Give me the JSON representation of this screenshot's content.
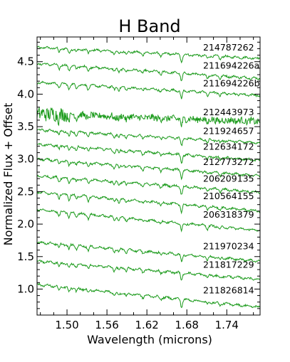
{
  "chart_data": {
    "type": "line",
    "title": "H Band",
    "xlabel": "Wavelength (microns)",
    "ylabel": "Normalized Flux + Offset",
    "xlim": [
      1.455,
      1.79
    ],
    "ylim": [
      0.6,
      4.88
    ],
    "xticks": [
      1.5,
      1.56,
      1.62,
      1.68,
      1.74
    ],
    "xtick_labels": [
      "1.50",
      "1.56",
      "1.62",
      "1.68",
      "1.74"
    ],
    "yticks": [
      1.0,
      1.5,
      2.0,
      2.5,
      3.0,
      3.5,
      4.0,
      4.5
    ],
    "ytick_labels": [
      "1.0",
      "1.5",
      "2.0",
      "2.5",
      "3.0",
      "3.5",
      "4.0",
      "4.5"
    ],
    "line_color": "#1a9a1a",
    "series": [
      {
        "name": "214787262",
        "start": 4.72,
        "end": 4.55
      },
      {
        "name": "211694226a",
        "start": 4.47,
        "end": 4.24
      },
      {
        "name": "211694226b",
        "start": 4.18,
        "end": 3.98
      },
      {
        "name": "212443973",
        "start": 3.7,
        "end": 3.58
      },
      {
        "name": "211924657",
        "start": 3.45,
        "end": 3.25
      },
      {
        "name": "212634172",
        "start": 3.23,
        "end": 2.98
      },
      {
        "name": "212773272",
        "start": 3.0,
        "end": 2.74
      },
      {
        "name": "206209135",
        "start": 2.74,
        "end": 2.49
      },
      {
        "name": "210564155",
        "start": 2.49,
        "end": 2.2
      },
      {
        "name": "206318379",
        "start": 2.22,
        "end": 1.9
      },
      {
        "name": "211970234",
        "start": 1.72,
        "end": 1.43
      },
      {
        "name": "211817229",
        "start": 1.43,
        "end": 1.15
      },
      {
        "name": "211826814",
        "start": 1.07,
        "end": 0.72
      }
    ]
  }
}
